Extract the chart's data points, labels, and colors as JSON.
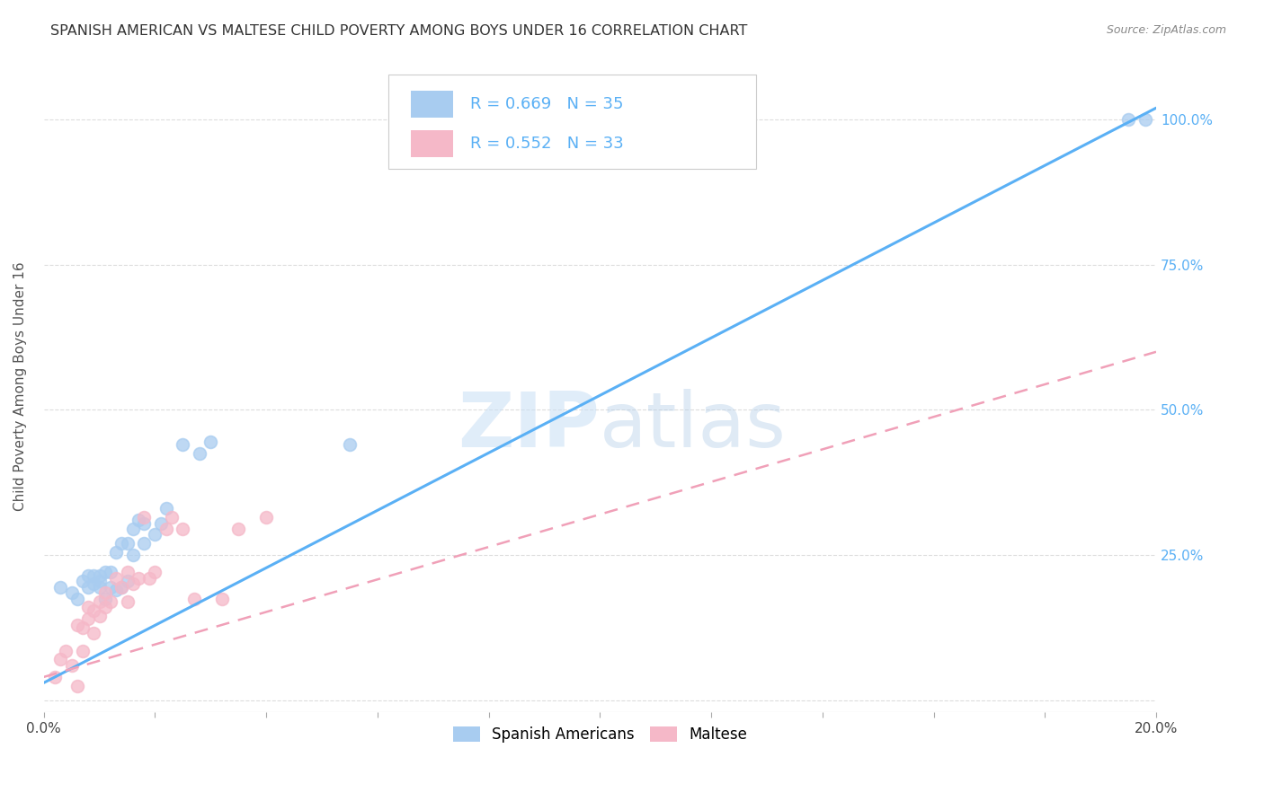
{
  "title": "SPANISH AMERICAN VS MALTESE CHILD POVERTY AMONG BOYS UNDER 16 CORRELATION CHART",
  "source": "Source: ZipAtlas.com",
  "ylabel": "Child Poverty Among Boys Under 16",
  "xlim": [
    0.0,
    0.2
  ],
  "ylim": [
    -0.02,
    1.1
  ],
  "ytick_labels": [
    "",
    "25.0%",
    "50.0%",
    "75.0%",
    "100.0%"
  ],
  "ytick_values": [
    0.0,
    0.25,
    0.5,
    0.75,
    1.0
  ],
  "xtick_values": [
    0.0,
    0.02,
    0.04,
    0.06,
    0.08,
    0.1,
    0.12,
    0.14,
    0.16,
    0.18,
    0.2
  ],
  "blue_R": "R = 0.669",
  "blue_N": "N = 35",
  "pink_R": "R = 0.552",
  "pink_N": "N = 33",
  "blue_scatter_color": "#a8ccf0",
  "pink_scatter_color": "#f5b8c8",
  "blue_line_color": "#5ab0f5",
  "pink_line_color": "#f0a0b8",
  "legend_label_blue": "Spanish Americans",
  "legend_label_pink": "Maltese",
  "watermark_zip": "ZIP",
  "watermark_atlas": "atlas",
  "blue_scatter_x": [
    0.003,
    0.005,
    0.006,
    0.007,
    0.008,
    0.008,
    0.009,
    0.009,
    0.01,
    0.01,
    0.01,
    0.011,
    0.011,
    0.012,
    0.012,
    0.013,
    0.013,
    0.014,
    0.014,
    0.015,
    0.015,
    0.016,
    0.016,
    0.017,
    0.018,
    0.018,
    0.02,
    0.021,
    0.022,
    0.025,
    0.028,
    0.03,
    0.055,
    0.195,
    0.198
  ],
  "blue_scatter_y": [
    0.195,
    0.185,
    0.175,
    0.205,
    0.195,
    0.215,
    0.2,
    0.215,
    0.195,
    0.205,
    0.215,
    0.175,
    0.22,
    0.195,
    0.22,
    0.19,
    0.255,
    0.195,
    0.27,
    0.205,
    0.27,
    0.25,
    0.295,
    0.31,
    0.27,
    0.305,
    0.285,
    0.305,
    0.33,
    0.44,
    0.425,
    0.445,
    0.44,
    1.0,
    1.0
  ],
  "pink_scatter_x": [
    0.002,
    0.003,
    0.004,
    0.005,
    0.006,
    0.006,
    0.007,
    0.007,
    0.008,
    0.008,
    0.009,
    0.009,
    0.01,
    0.01,
    0.011,
    0.011,
    0.012,
    0.013,
    0.014,
    0.015,
    0.015,
    0.016,
    0.017,
    0.018,
    0.019,
    0.02,
    0.022,
    0.023,
    0.025,
    0.027,
    0.032,
    0.035,
    0.04
  ],
  "pink_scatter_y": [
    0.04,
    0.07,
    0.085,
    0.06,
    0.025,
    0.13,
    0.085,
    0.125,
    0.14,
    0.16,
    0.115,
    0.155,
    0.145,
    0.17,
    0.16,
    0.185,
    0.17,
    0.21,
    0.195,
    0.22,
    0.17,
    0.2,
    0.21,
    0.315,
    0.21,
    0.22,
    0.295,
    0.315,
    0.295,
    0.175,
    0.175,
    0.295,
    0.315
  ],
  "blue_line_x": [
    0.0,
    0.2
  ],
  "blue_line_y": [
    0.03,
    1.02
  ],
  "pink_line_x": [
    0.0,
    0.2
  ],
  "pink_line_y": [
    0.04,
    0.6
  ],
  "background_color": "#ffffff",
  "grid_color": "#dddddd",
  "title_color": "#333333",
  "axis_label_color": "#555555",
  "ytick_color": "#5ab0f5",
  "title_fontsize": 11.5,
  "source_fontsize": 9
}
